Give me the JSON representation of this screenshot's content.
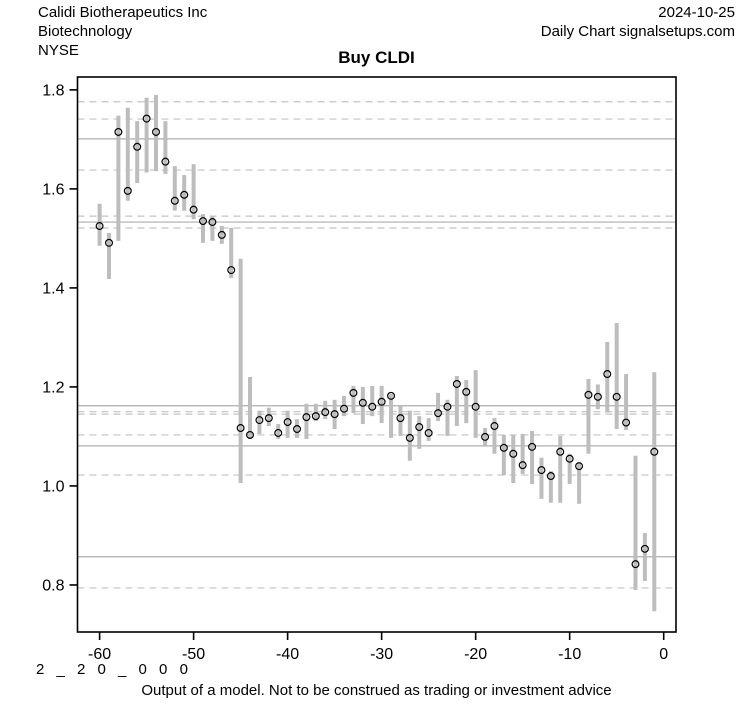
{
  "header": {
    "company": "Calidi Biotherapeutics Inc",
    "sector": "Biotechnology",
    "exchange": "NYSE",
    "date": "2024-10-25",
    "chart_label": "Daily Chart signalsetups.com"
  },
  "footer": {
    "code_label": "2 _ 2 0 _ 0 0 0",
    "disclaimer": "Output of a model. Not to be construed as trading or investment advice"
  },
  "colors": {
    "bar": "#bdbdbd",
    "grid_solid": "#adadad",
    "grid_dashed": "#c3c3c3",
    "axis": "#000000",
    "point_stroke": "#000000",
    "background": "#ffffff"
  },
  "chart_data": {
    "type": "scatter",
    "title": "Buy CLDI",
    "xlabel": "",
    "ylabel": "",
    "x_ticks": [
      -60,
      -50,
      -40,
      -30,
      -20,
      -10,
      0
    ],
    "y_ticks": [
      0.8,
      1.0,
      1.2,
      1.4,
      1.6,
      1.8
    ],
    "xlim": [
      -62.35,
      1.31
    ],
    "ylim": [
      0.705,
      1.826
    ],
    "grid": "horizontal-only",
    "legend": "none",
    "grid_solid_levels": [
      1.701,
      1.533,
      1.162,
      1.081,
      0.857
    ],
    "grid_dashed_levels": [
      1.776,
      1.741,
      1.638,
      1.545,
      1.521,
      1.15,
      1.145,
      1.103,
      1.022,
      0.794
    ],
    "series": [
      {
        "name": "daily-price-range",
        "marker": "open-circle-with-range-bar",
        "points": [
          {
            "x": -60,
            "low": 1.485,
            "high": 1.57,
            "close": 1.525
          },
          {
            "x": -59,
            "low": 1.418,
            "high": 1.511,
            "close": 1.491
          },
          {
            "x": -58,
            "low": 1.495,
            "high": 1.748,
            "close": 1.715
          },
          {
            "x": -57,
            "low": 1.576,
            "high": 1.764,
            "close": 1.596
          },
          {
            "x": -56,
            "low": 1.612,
            "high": 1.737,
            "close": 1.685
          },
          {
            "x": -55,
            "low": 1.633,
            "high": 1.784,
            "close": 1.742
          },
          {
            "x": -54,
            "low": 1.636,
            "high": 1.79,
            "close": 1.715
          },
          {
            "x": -53,
            "low": 1.63,
            "high": 1.737,
            "close": 1.655
          },
          {
            "x": -52,
            "low": 1.556,
            "high": 1.646,
            "close": 1.576
          },
          {
            "x": -51,
            "low": 1.556,
            "high": 1.628,
            "close": 1.588
          },
          {
            "x": -50,
            "low": 1.539,
            "high": 1.65,
            "close": 1.558
          },
          {
            "x": -49,
            "low": 1.491,
            "high": 1.549,
            "close": 1.535
          },
          {
            "x": -48,
            "low": 1.495,
            "high": 1.545,
            "close": 1.533
          },
          {
            "x": -47,
            "low": 1.489,
            "high": 1.525,
            "close": 1.507
          },
          {
            "x": -46,
            "low": 1.42,
            "high": 1.521,
            "close": 1.436
          },
          {
            "x": -45,
            "low": 1.006,
            "high": 1.459,
            "close": 1.117
          },
          {
            "x": -44,
            "low": 1.095,
            "high": 1.22,
            "close": 1.103
          },
          {
            "x": -43,
            "low": 1.105,
            "high": 1.152,
            "close": 1.133
          },
          {
            "x": -42,
            "low": 1.121,
            "high": 1.158,
            "close": 1.137
          },
          {
            "x": -41,
            "low": 1.095,
            "high": 1.125,
            "close": 1.107
          },
          {
            "x": -40,
            "low": 1.097,
            "high": 1.152,
            "close": 1.129
          },
          {
            "x": -39,
            "low": 1.097,
            "high": 1.135,
            "close": 1.115
          },
          {
            "x": -38,
            "low": 1.095,
            "high": 1.166,
            "close": 1.139
          },
          {
            "x": -37,
            "low": 1.131,
            "high": 1.166,
            "close": 1.141
          },
          {
            "x": -36,
            "low": 1.135,
            "high": 1.172,
            "close": 1.149
          },
          {
            "x": -35,
            "low": 1.115,
            "high": 1.174,
            "close": 1.145
          },
          {
            "x": -34,
            "low": 1.141,
            "high": 1.182,
            "close": 1.156
          },
          {
            "x": -33,
            "low": 1.147,
            "high": 1.202,
            "close": 1.188
          },
          {
            "x": -32,
            "low": 1.125,
            "high": 1.2,
            "close": 1.168
          },
          {
            "x": -31,
            "low": 1.141,
            "high": 1.202,
            "close": 1.16
          },
          {
            "x": -30,
            "low": 1.127,
            "high": 1.202,
            "close": 1.17
          },
          {
            "x": -29,
            "low": 1.097,
            "high": 1.186,
            "close": 1.182
          },
          {
            "x": -28,
            "low": 1.101,
            "high": 1.162,
            "close": 1.137
          },
          {
            "x": -27,
            "low": 1.051,
            "high": 1.152,
            "close": 1.097
          },
          {
            "x": -26,
            "low": 1.075,
            "high": 1.141,
            "close": 1.119
          },
          {
            "x": -25,
            "low": 1.091,
            "high": 1.137,
            "close": 1.107
          },
          {
            "x": -24,
            "low": 1.131,
            "high": 1.188,
            "close": 1.147
          },
          {
            "x": -23,
            "low": 1.101,
            "high": 1.174,
            "close": 1.16
          },
          {
            "x": -22,
            "low": 1.121,
            "high": 1.222,
            "close": 1.206
          },
          {
            "x": -21,
            "low": 1.127,
            "high": 1.214,
            "close": 1.19
          },
          {
            "x": -20,
            "low": 1.097,
            "high": 1.234,
            "close": 1.16
          },
          {
            "x": -19,
            "low": 1.081,
            "high": 1.117,
            "close": 1.099
          },
          {
            "x": -18,
            "low": 1.065,
            "high": 1.137,
            "close": 1.121
          },
          {
            "x": -17,
            "low": 1.022,
            "high": 1.103,
            "close": 1.077
          },
          {
            "x": -16,
            "low": 1.006,
            "high": 1.103,
            "close": 1.065
          },
          {
            "x": -15,
            "low": 1.024,
            "high": 1.105,
            "close": 1.042
          },
          {
            "x": -14,
            "low": 1.004,
            "high": 1.111,
            "close": 1.079
          },
          {
            "x": -13,
            "low": 0.974,
            "high": 1.057,
            "close": 1.032
          },
          {
            "x": -12,
            "low": 0.966,
            "high": 1.03,
            "close": 1.02
          },
          {
            "x": -11,
            "low": 0.966,
            "high": 1.101,
            "close": 1.069
          },
          {
            "x": -10,
            "low": 1.004,
            "high": 1.065,
            "close": 1.055
          },
          {
            "x": -9,
            "low": 0.964,
            "high": 1.046,
            "close": 1.04
          },
          {
            "x": -8,
            "low": 1.065,
            "high": 1.216,
            "close": 1.184
          },
          {
            "x": -7,
            "low": 1.155,
            "high": 1.205,
            "close": 1.18
          },
          {
            "x": -6,
            "low": 1.148,
            "high": 1.291,
            "close": 1.226
          },
          {
            "x": -5,
            "low": 1.115,
            "high": 1.329,
            "close": 1.18
          },
          {
            "x": -4,
            "low": 1.113,
            "high": 1.226,
            "close": 1.128
          },
          {
            "x": -3,
            "low": 0.79,
            "high": 1.061,
            "close": 0.842
          },
          {
            "x": -2,
            "low": 0.808,
            "high": 0.905,
            "close": 0.873
          },
          {
            "x": -1,
            "low": 0.747,
            "high": 1.23,
            "close": 1.069
          }
        ]
      }
    ]
  }
}
